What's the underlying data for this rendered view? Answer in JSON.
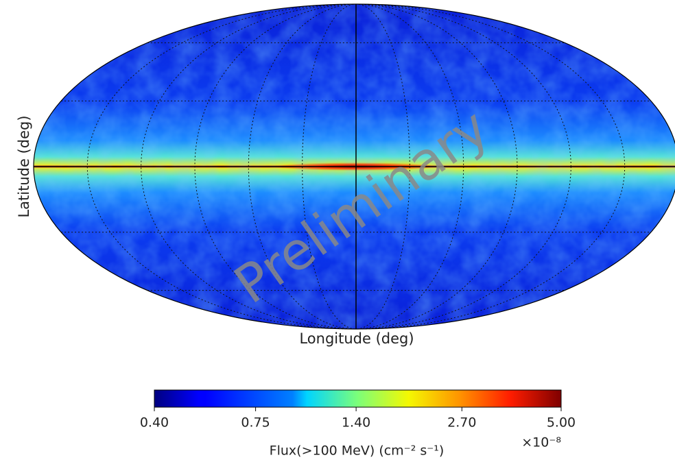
{
  "chart_data": {
    "type": "skymap",
    "projection": "mollweide",
    "grid": true,
    "ylabel": "Latitude (deg)",
    "xlabel": "Longitude (deg)",
    "watermark": "Preliminary",
    "colorbar": {
      "label": "Flux(>100 MeV) (cm⁻² s⁻¹)",
      "offset_label": "×10⁻⁸",
      "scale": "log",
      "colormap": "jet",
      "clim": [
        0.4,
        5.0
      ],
      "ticks": [
        {
          "value": 0.4,
          "label": "0.40"
        },
        {
          "value": 0.75,
          "label": "0.75"
        },
        {
          "value": 1.4,
          "label": "1.40"
        },
        {
          "value": 2.7,
          "label": "2.70"
        },
        {
          "value": 5.0,
          "label": "5.00"
        }
      ]
    }
  }
}
